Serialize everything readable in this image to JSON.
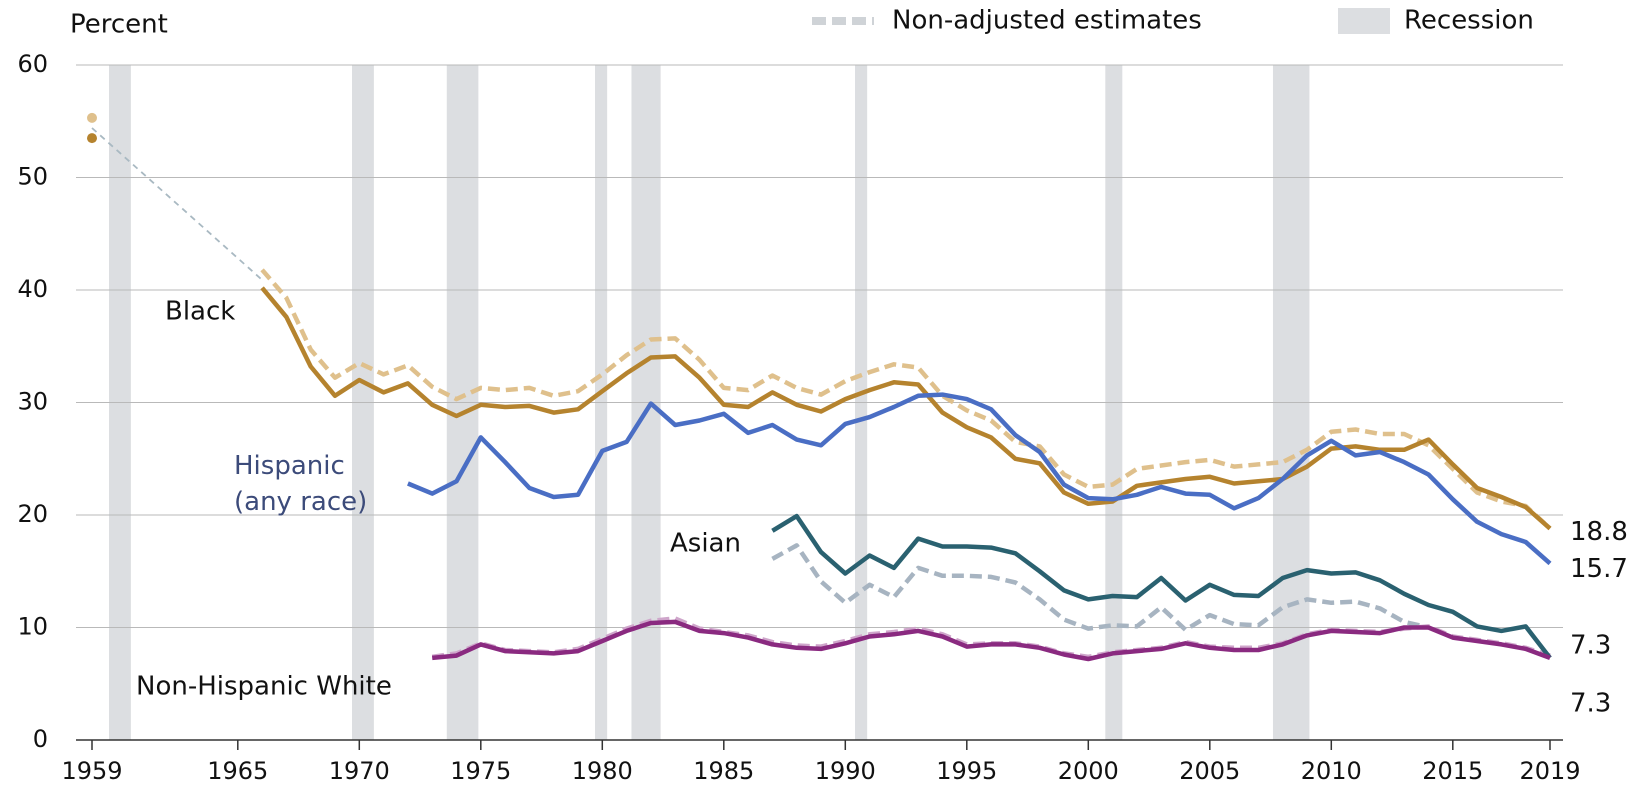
{
  "chart_data": {
    "type": "line",
    "y_axis_label": "Percent",
    "dashed_legend": "Non-adjusted estimates",
    "recession_legend": "Recession",
    "xlim": [
      1959,
      2019
    ],
    "ylim": [
      0,
      60
    ],
    "xticks": [
      1959,
      1965,
      1970,
      1975,
      1980,
      1985,
      1990,
      1995,
      2000,
      2005,
      2010,
      2015,
      2019
    ],
    "yticks": [
      0,
      10,
      20,
      30,
      40,
      50,
      60
    ],
    "grid": true,
    "recession_color": "#dcdee1",
    "recessions": [
      [
        1959.7,
        1960.6
      ],
      [
        1969.7,
        1970.6
      ],
      [
        1973.6,
        1974.9
      ],
      [
        1979.7,
        1980.2
      ],
      [
        1981.2,
        1982.4
      ],
      [
        1990.4,
        1990.9
      ],
      [
        2000.7,
        2001.4
      ],
      [
        2007.6,
        2009.1
      ]
    ],
    "x": [
      1959,
      1960,
      1961,
      1962,
      1963,
      1964,
      1965,
      1966,
      1967,
      1968,
      1969,
      1970,
      1971,
      1972,
      1973,
      1974,
      1975,
      1976,
      1977,
      1978,
      1979,
      1980,
      1981,
      1982,
      1983,
      1984,
      1985,
      1986,
      1987,
      1988,
      1989,
      1990,
      1991,
      1992,
      1993,
      1994,
      1995,
      1996,
      1997,
      1998,
      1999,
      2000,
      2001,
      2002,
      2003,
      2004,
      2005,
      2006,
      2007,
      2008,
      2009,
      2010,
      2011,
      2012,
      2013,
      2014,
      2015,
      2016,
      2017,
      2018,
      2019
    ],
    "series": [
      {
        "style": "thin-dash",
        "color": "#a9b9c2",
        "x": [
          1959,
          1966
        ],
        "values": [
          54.4,
          40.9
        ]
      },
      {
        "style": "dashed",
        "color": "#dfc08c",
        "values": [
          55.3,
          null,
          null,
          null,
          null,
          null,
          null,
          41.8,
          39.3,
          34.7,
          32.2,
          33.5,
          32.5,
          33.3,
          31.4,
          30.3,
          31.3,
          31.1,
          31.3,
          30.6,
          31.0,
          32.5,
          34.2,
          35.6,
          35.7,
          33.8,
          31.3,
          31.1,
          32.4,
          31.3,
          30.7,
          31.9,
          32.7,
          33.4,
          33.1,
          30.6,
          29.3,
          28.4,
          26.5,
          26.1,
          23.6,
          22.5,
          22.7,
          24.1,
          24.4,
          24.7,
          24.9,
          24.3,
          24.5,
          24.7,
          25.8,
          27.4,
          27.6,
          27.2,
          27.2,
          26.2,
          24.1,
          22.0,
          21.2,
          20.8,
          18.8
        ]
      },
      {
        "style": "dashed",
        "color": "#a7b4c1",
        "values": [
          null,
          null,
          null,
          null,
          null,
          null,
          null,
          null,
          null,
          null,
          null,
          null,
          null,
          null,
          null,
          null,
          null,
          null,
          null,
          null,
          null,
          null,
          null,
          null,
          null,
          null,
          null,
          null,
          16.1,
          17.3,
          14.1,
          12.2,
          13.8,
          12.7,
          15.3,
          14.6,
          14.6,
          14.5,
          14.0,
          12.5,
          10.7,
          9.9,
          10.2,
          10.1,
          11.8,
          9.8,
          11.1,
          10.3,
          10.2,
          11.8,
          12.5,
          12.2,
          12.3,
          11.7,
          10.5,
          10.0,
          null,
          null,
          null,
          null,
          null
        ]
      },
      {
        "style": "dashed",
        "color": "#cfa6cb",
        "values": [
          null,
          null,
          null,
          null,
          null,
          null,
          null,
          null,
          null,
          null,
          null,
          null,
          null,
          null,
          7.4,
          7.7,
          8.6,
          8.0,
          7.9,
          7.8,
          8.1,
          9.0,
          9.9,
          10.6,
          10.8,
          9.9,
          9.6,
          9.3,
          8.7,
          8.4,
          8.3,
          8.8,
          9.4,
          9.6,
          9.9,
          9.4,
          8.5,
          8.6,
          8.6,
          8.3,
          7.7,
          7.4,
          7.8,
          8.0,
          8.2,
          8.7,
          8.3,
          8.2,
          8.2,
          8.6,
          9.4,
          9.8,
          9.7,
          9.6,
          9.9,
          10.1,
          9.2,
          8.9,
          8.6,
          8.2,
          7.5
        ]
      },
      {
        "name": "Black",
        "style": "solid",
        "color": "#b5832e",
        "values": [
          53.5,
          null,
          null,
          null,
          null,
          null,
          null,
          40.2,
          37.6,
          33.2,
          30.6,
          32.0,
          30.9,
          31.7,
          29.8,
          28.8,
          29.8,
          29.6,
          29.7,
          29.1,
          29.4,
          31.0,
          32.6,
          34.0,
          34.1,
          32.2,
          29.8,
          29.6,
          30.9,
          29.8,
          29.2,
          30.3,
          31.1,
          31.8,
          31.6,
          29.1,
          27.8,
          26.9,
          25.0,
          24.6,
          22.0,
          21.0,
          21.2,
          22.6,
          22.9,
          23.2,
          23.4,
          22.8,
          23.0,
          23.2,
          24.3,
          25.9,
          26.1,
          25.8,
          25.8,
          26.7,
          24.5,
          22.4,
          21.6,
          20.7,
          18.8
        ]
      },
      {
        "name": [
          "Hispanic",
          "(any race)"
        ],
        "style": "solid",
        "color": "#4a6ec4",
        "values": [
          null,
          null,
          null,
          null,
          null,
          null,
          null,
          null,
          null,
          null,
          null,
          null,
          null,
          22.8,
          21.9,
          23.0,
          26.9,
          24.7,
          22.4,
          21.6,
          21.8,
          25.7,
          26.5,
          29.9,
          28.0,
          28.4,
          29.0,
          27.3,
          28.0,
          26.7,
          26.2,
          28.1,
          28.7,
          29.6,
          30.6,
          30.7,
          30.3,
          29.4,
          27.1,
          25.6,
          22.7,
          21.5,
          21.4,
          21.8,
          22.5,
          21.9,
          21.8,
          20.6,
          21.5,
          23.2,
          25.3,
          26.6,
          25.3,
          25.6,
          24.7,
          23.6,
          21.4,
          19.4,
          18.3,
          17.6,
          15.7
        ]
      },
      {
        "name": "Asian",
        "style": "solid",
        "color": "#2a6170",
        "values": [
          null,
          null,
          null,
          null,
          null,
          null,
          null,
          null,
          null,
          null,
          null,
          null,
          null,
          null,
          null,
          null,
          null,
          null,
          null,
          null,
          null,
          null,
          null,
          null,
          null,
          null,
          null,
          null,
          18.6,
          19.9,
          16.7,
          14.8,
          16.4,
          15.3,
          17.9,
          17.2,
          17.2,
          17.1,
          16.6,
          15.0,
          13.3,
          12.5,
          12.8,
          12.7,
          14.4,
          12.4,
          13.8,
          12.9,
          12.8,
          14.4,
          15.1,
          14.8,
          14.9,
          14.2,
          13.0,
          12.0,
          11.4,
          10.1,
          9.7,
          10.1,
          7.3
        ]
      },
      {
        "name": "Non-Hispanic White",
        "style": "solid",
        "color": "#8a2a80",
        "values": [
          null,
          null,
          null,
          null,
          null,
          null,
          null,
          null,
          null,
          null,
          null,
          null,
          null,
          null,
          7.3,
          7.5,
          8.5,
          7.9,
          7.8,
          7.7,
          7.9,
          8.8,
          9.7,
          10.4,
          10.5,
          9.7,
          9.5,
          9.1,
          8.5,
          8.2,
          8.1,
          8.6,
          9.2,
          9.4,
          9.7,
          9.2,
          8.3,
          8.5,
          8.5,
          8.2,
          7.6,
          7.2,
          7.7,
          7.9,
          8.1,
          8.6,
          8.2,
          8.0,
          8.0,
          8.5,
          9.3,
          9.7,
          9.6,
          9.5,
          10.0,
          10.0,
          9.1,
          8.8,
          8.5,
          8.1,
          7.3
        ]
      }
    ]
  }
}
